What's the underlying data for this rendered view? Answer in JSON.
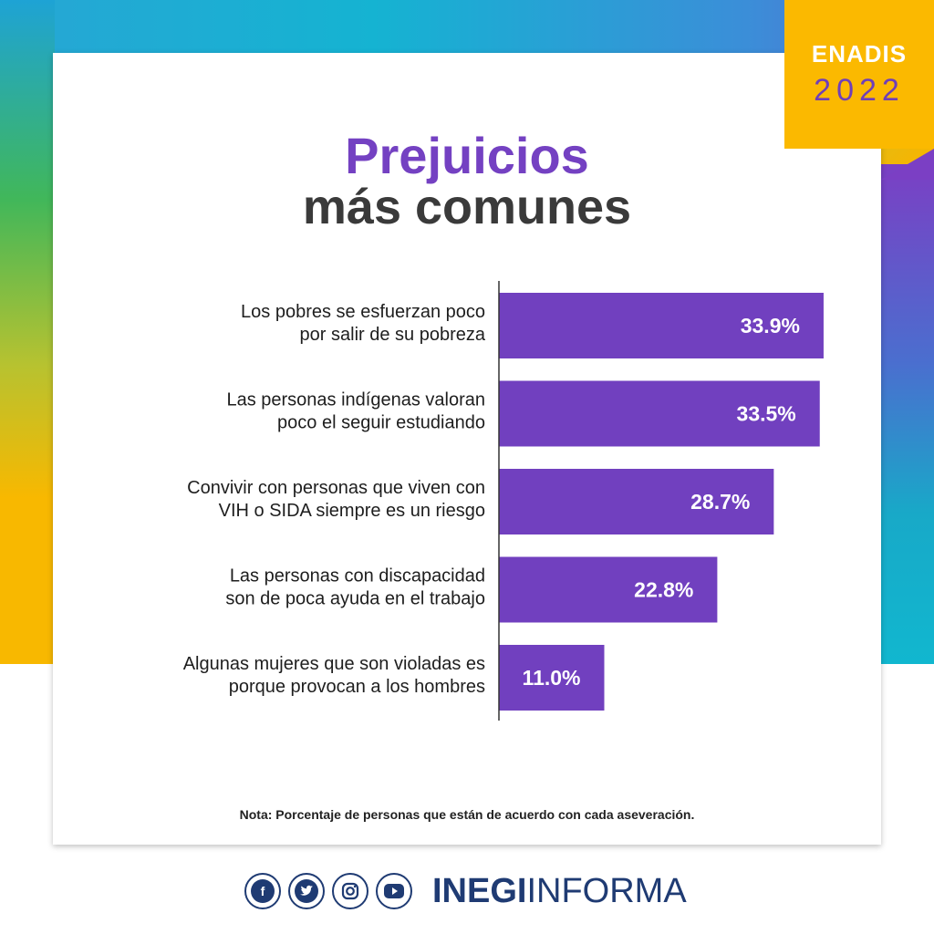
{
  "badge": {
    "name": "ENADIS",
    "year": "2022"
  },
  "title": {
    "line1": "Prejuicios",
    "line2": "más comunes"
  },
  "note": "Nota: Porcentaje de personas que están de acuerdo con cada aseveración.",
  "footer": {
    "brand_bold": "INEGI",
    "brand_light": "INFORMA",
    "social": [
      "facebook-icon",
      "twitter-icon",
      "instagram-icon",
      "youtube-icon"
    ]
  },
  "colors": {
    "bar": "#7140bf",
    "title_accent": "#7441c2",
    "brand": "#1f3b73",
    "badge": "#fbb900"
  },
  "chart_data": {
    "type": "bar",
    "orientation": "horizontal",
    "categories": [
      [
        "Los pobres se esfuerzan poco",
        "por salir de su pobreza"
      ],
      [
        "Las personas indígenas valoran",
        "poco el seguir estudiando"
      ],
      [
        "Convivir con personas que viven con",
        "VIH o SIDA siempre es un riesgo"
      ],
      [
        "Las personas con discapacidad",
        "son de poca ayuda en el trabajo"
      ],
      [
        "Algunas mujeres que son violadas es",
        "porque provocan a los hombres"
      ]
    ],
    "values": [
      33.9,
      33.5,
      28.7,
      22.8,
      11.0
    ],
    "value_labels": [
      "33.9%",
      "33.5%",
      "28.7%",
      "22.8%",
      "11.0%"
    ],
    "xlim": [
      0,
      34
    ]
  }
}
